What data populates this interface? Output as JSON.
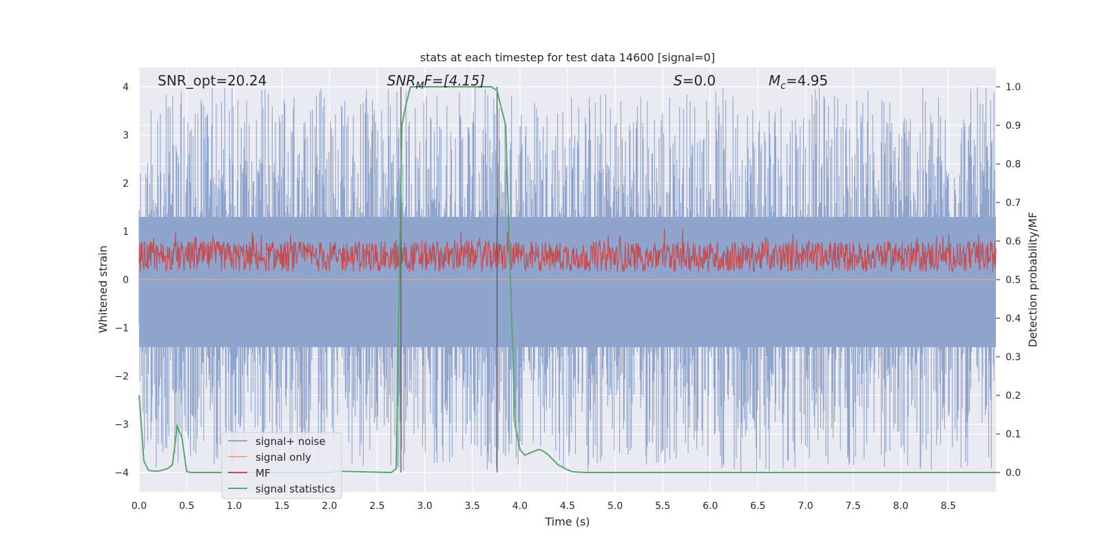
{
  "chart_data": {
    "type": "line",
    "title": "stats at each timestep for test data 14600 [signal=0]",
    "xlabel": "Time (s)",
    "ylabel": "Whitened strain",
    "y2label": "Detection probability/MF",
    "xlim": [
      0,
      9.0
    ],
    "ylim": [
      -4.4,
      4.4
    ],
    "y2lim": [
      -0.05,
      1.05
    ],
    "xticks": [
      "0.0",
      "0.5",
      "1.0",
      "1.5",
      "2.0",
      "2.5",
      "3.0",
      "3.5",
      "4.0",
      "4.5",
      "5.0",
      "5.5",
      "6.0",
      "6.5",
      "7.0",
      "7.5",
      "8.0",
      "8.5"
    ],
    "yticks": [
      "4",
      "3",
      "2",
      "1",
      "0",
      "−1",
      "−2",
      "−3",
      "−4"
    ],
    "y2ticks": [
      "1.0",
      "0.9",
      "0.8",
      "0.7",
      "0.6",
      "0.5",
      "0.4",
      "0.3",
      "0.2",
      "0.1",
      "0.0"
    ],
    "grid": true,
    "legend_position": "lower-left",
    "annotations": {
      "snr_opt": "SNR_opt=20.24",
      "snr_mf_base": "SNR",
      "snr_mf_sub": "M",
      "snr_mf_rest": "F=[4.15]",
      "s_base": "S",
      "s_rest": "=0.0",
      "mc_base": "M",
      "mc_sub": "c",
      "mc_rest": "=4.95"
    },
    "vlines": [
      2.75,
      3.76
    ],
    "series": [
      {
        "name": "signal+ noise",
        "color": "#8fa5cd",
        "axis": "left",
        "kind": "noise",
        "envelope_max": 4.0,
        "envelope_min": -4.0
      },
      {
        "name": "signal only",
        "color": "#eeaa88",
        "axis": "left",
        "kind": "flat",
        "values": [
          0,
          0
        ]
      },
      {
        "name": "MF",
        "color": "#c44e52",
        "axis": "right",
        "kind": "noise",
        "range": [
          0.52,
          0.6
        ]
      },
      {
        "name": "signal statistics",
        "color": "#55a868",
        "axis": "right",
        "kind": "line",
        "x": [
          0.0,
          0.05,
          0.1,
          0.2,
          0.3,
          0.35,
          0.4,
          0.45,
          0.5,
          0.55,
          1.0,
          2.0,
          2.1,
          2.65,
          2.7,
          2.73,
          2.76,
          2.8,
          2.85,
          3.0,
          3.5,
          3.7,
          3.76,
          3.8,
          3.85,
          3.9,
          3.95,
          4.0,
          4.05,
          4.1,
          4.15,
          4.2,
          4.25,
          4.3,
          4.4,
          4.5,
          4.55,
          4.6,
          4.7,
          5.0,
          9.0
        ],
        "values": [
          0.2,
          0.03,
          0.005,
          0.003,
          0.01,
          0.02,
          0.12,
          0.09,
          0.002,
          0.0,
          0.0,
          0.0,
          0.003,
          0.0,
          0.01,
          0.45,
          0.9,
          0.95,
          1.0,
          1.0,
          1.0,
          1.0,
          0.99,
          0.95,
          0.9,
          0.5,
          0.12,
          0.06,
          0.045,
          0.05,
          0.055,
          0.06,
          0.055,
          0.045,
          0.02,
          0.007,
          0.002,
          0.001,
          0.0,
          0.0,
          0.0
        ]
      }
    ]
  }
}
